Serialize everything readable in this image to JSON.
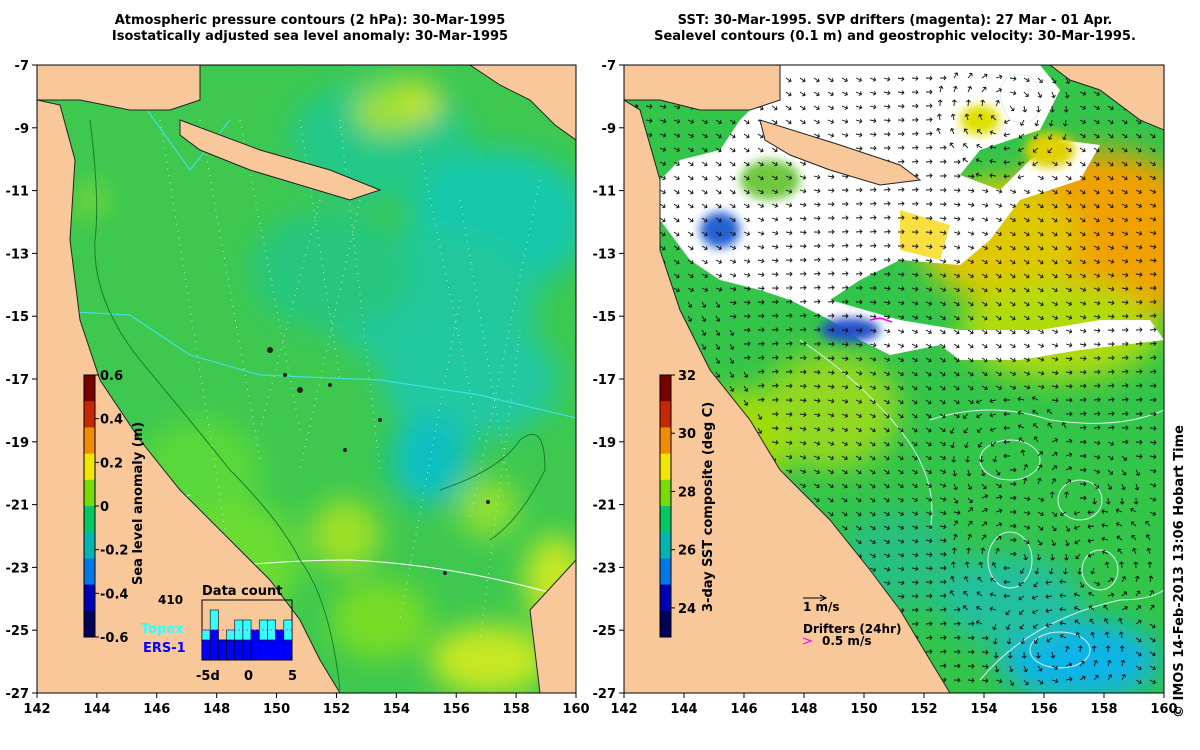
{
  "left_panel": {
    "title_line1": "Atmospheric pressure contours (2 hPa): 30-Mar-1995",
    "title_line2": "Isostatically adjusted sea level anomaly: 30-Mar-1995",
    "colorbar_label": "Sea level anomaly (m)",
    "colorbar_ticks": [
      "0.6",
      "0.4",
      "0.2",
      "0",
      "-0.2",
      "-0.4",
      "-0.6"
    ],
    "colorbar_colors": [
      "#7a0000",
      "#c82800",
      "#f08c00",
      "#f0e600",
      "#78dc00",
      "#00c864",
      "#00b4b4",
      "#0078e6",
      "#0000b4",
      "#00005a"
    ],
    "inset": {
      "title": "Data count",
      "max_label": "410",
      "x_ticks": [
        "-5d",
        "0",
        "5"
      ],
      "series": [
        {
          "name": "Topex",
          "color": "#33ffff",
          "values": [
            3,
            5,
            2,
            3,
            4,
            4,
            3,
            4,
            4,
            3,
            4
          ]
        },
        {
          "name": "ERS-1",
          "color": "#0000ff",
          "values": [
            2,
            3,
            2,
            2,
            2,
            2,
            3,
            2,
            2,
            3,
            2
          ]
        }
      ],
      "legend_colors": {
        "Topex": "#33ffff",
        "ERS-1": "#0000ff"
      }
    }
  },
  "right_panel": {
    "title_line1": "SST: 30-Mar-1995. SVP drifters (magenta): 27 Mar - 01 Apr.",
    "title_line2": "Sealevel contours (0.1 m) and geostrophic velocity: 30-Mar-1995.",
    "colorbar_label": "3-day SST composite (deg C)",
    "colorbar_ticks": [
      "32",
      "30",
      "28",
      "26",
      "24"
    ],
    "colorbar_colors": [
      "#7a0000",
      "#c82800",
      "#f08c00",
      "#f0e600",
      "#78dc00",
      "#00c864",
      "#00b4b4",
      "#0078e6",
      "#0000b4",
      "#00005a"
    ],
    "scale_label": "1 m/s",
    "drifters_label": "Drifters (24hr)",
    "drifter_speed_label": "0.5 m/s"
  },
  "map_axes": {
    "lon_ticks": [
      "142",
      "144",
      "146",
      "148",
      "150",
      "152",
      "154",
      "156",
      "158",
      "160"
    ],
    "lat_ticks": [
      "-7",
      "-9",
      "-11",
      "-13",
      "-15",
      "-17",
      "-19",
      "-21",
      "-23",
      "-25",
      "-27"
    ]
  },
  "credit": "© IMOS 14-Feb-2013 13:06 Hobart Time",
  "colors": {
    "land": "#f8c89a",
    "ocean_left": "#3ec850",
    "ocean_right": "#33c44a",
    "cloud": "#ffffff",
    "drifter": "#ff00ff",
    "contour": "#e0f0f0"
  }
}
